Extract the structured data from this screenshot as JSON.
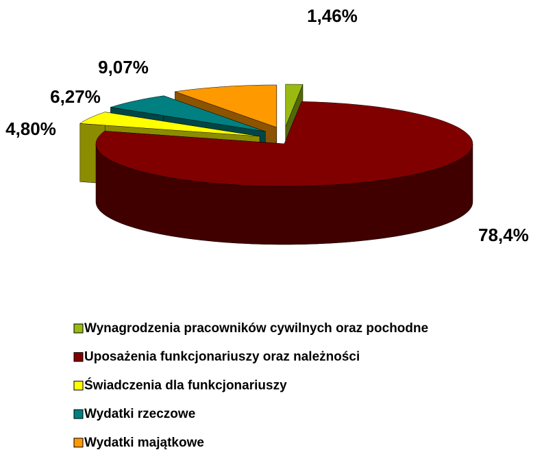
{
  "chart_data": {
    "type": "pie",
    "categories": [
      "Wynagrodzenia pracowników cywilnych oraz pochodne",
      "Uposażenia funkcjonariuszy oraz należności",
      "Świadczenia dla funkcjonariuszy",
      "Wydatki rzeczowe",
      "Wydatki majątkowe"
    ],
    "values": [
      1.46,
      78.4,
      4.8,
      6.27,
      9.07
    ],
    "value_labels": [
      "1,46%",
      "78,4%",
      "4,80%",
      "6,27%",
      "9,07%"
    ],
    "colors": [
      "#99bb11",
      "#800000",
      "#ffff00",
      "#008080",
      "#ff9900"
    ],
    "legend": "bottom"
  }
}
